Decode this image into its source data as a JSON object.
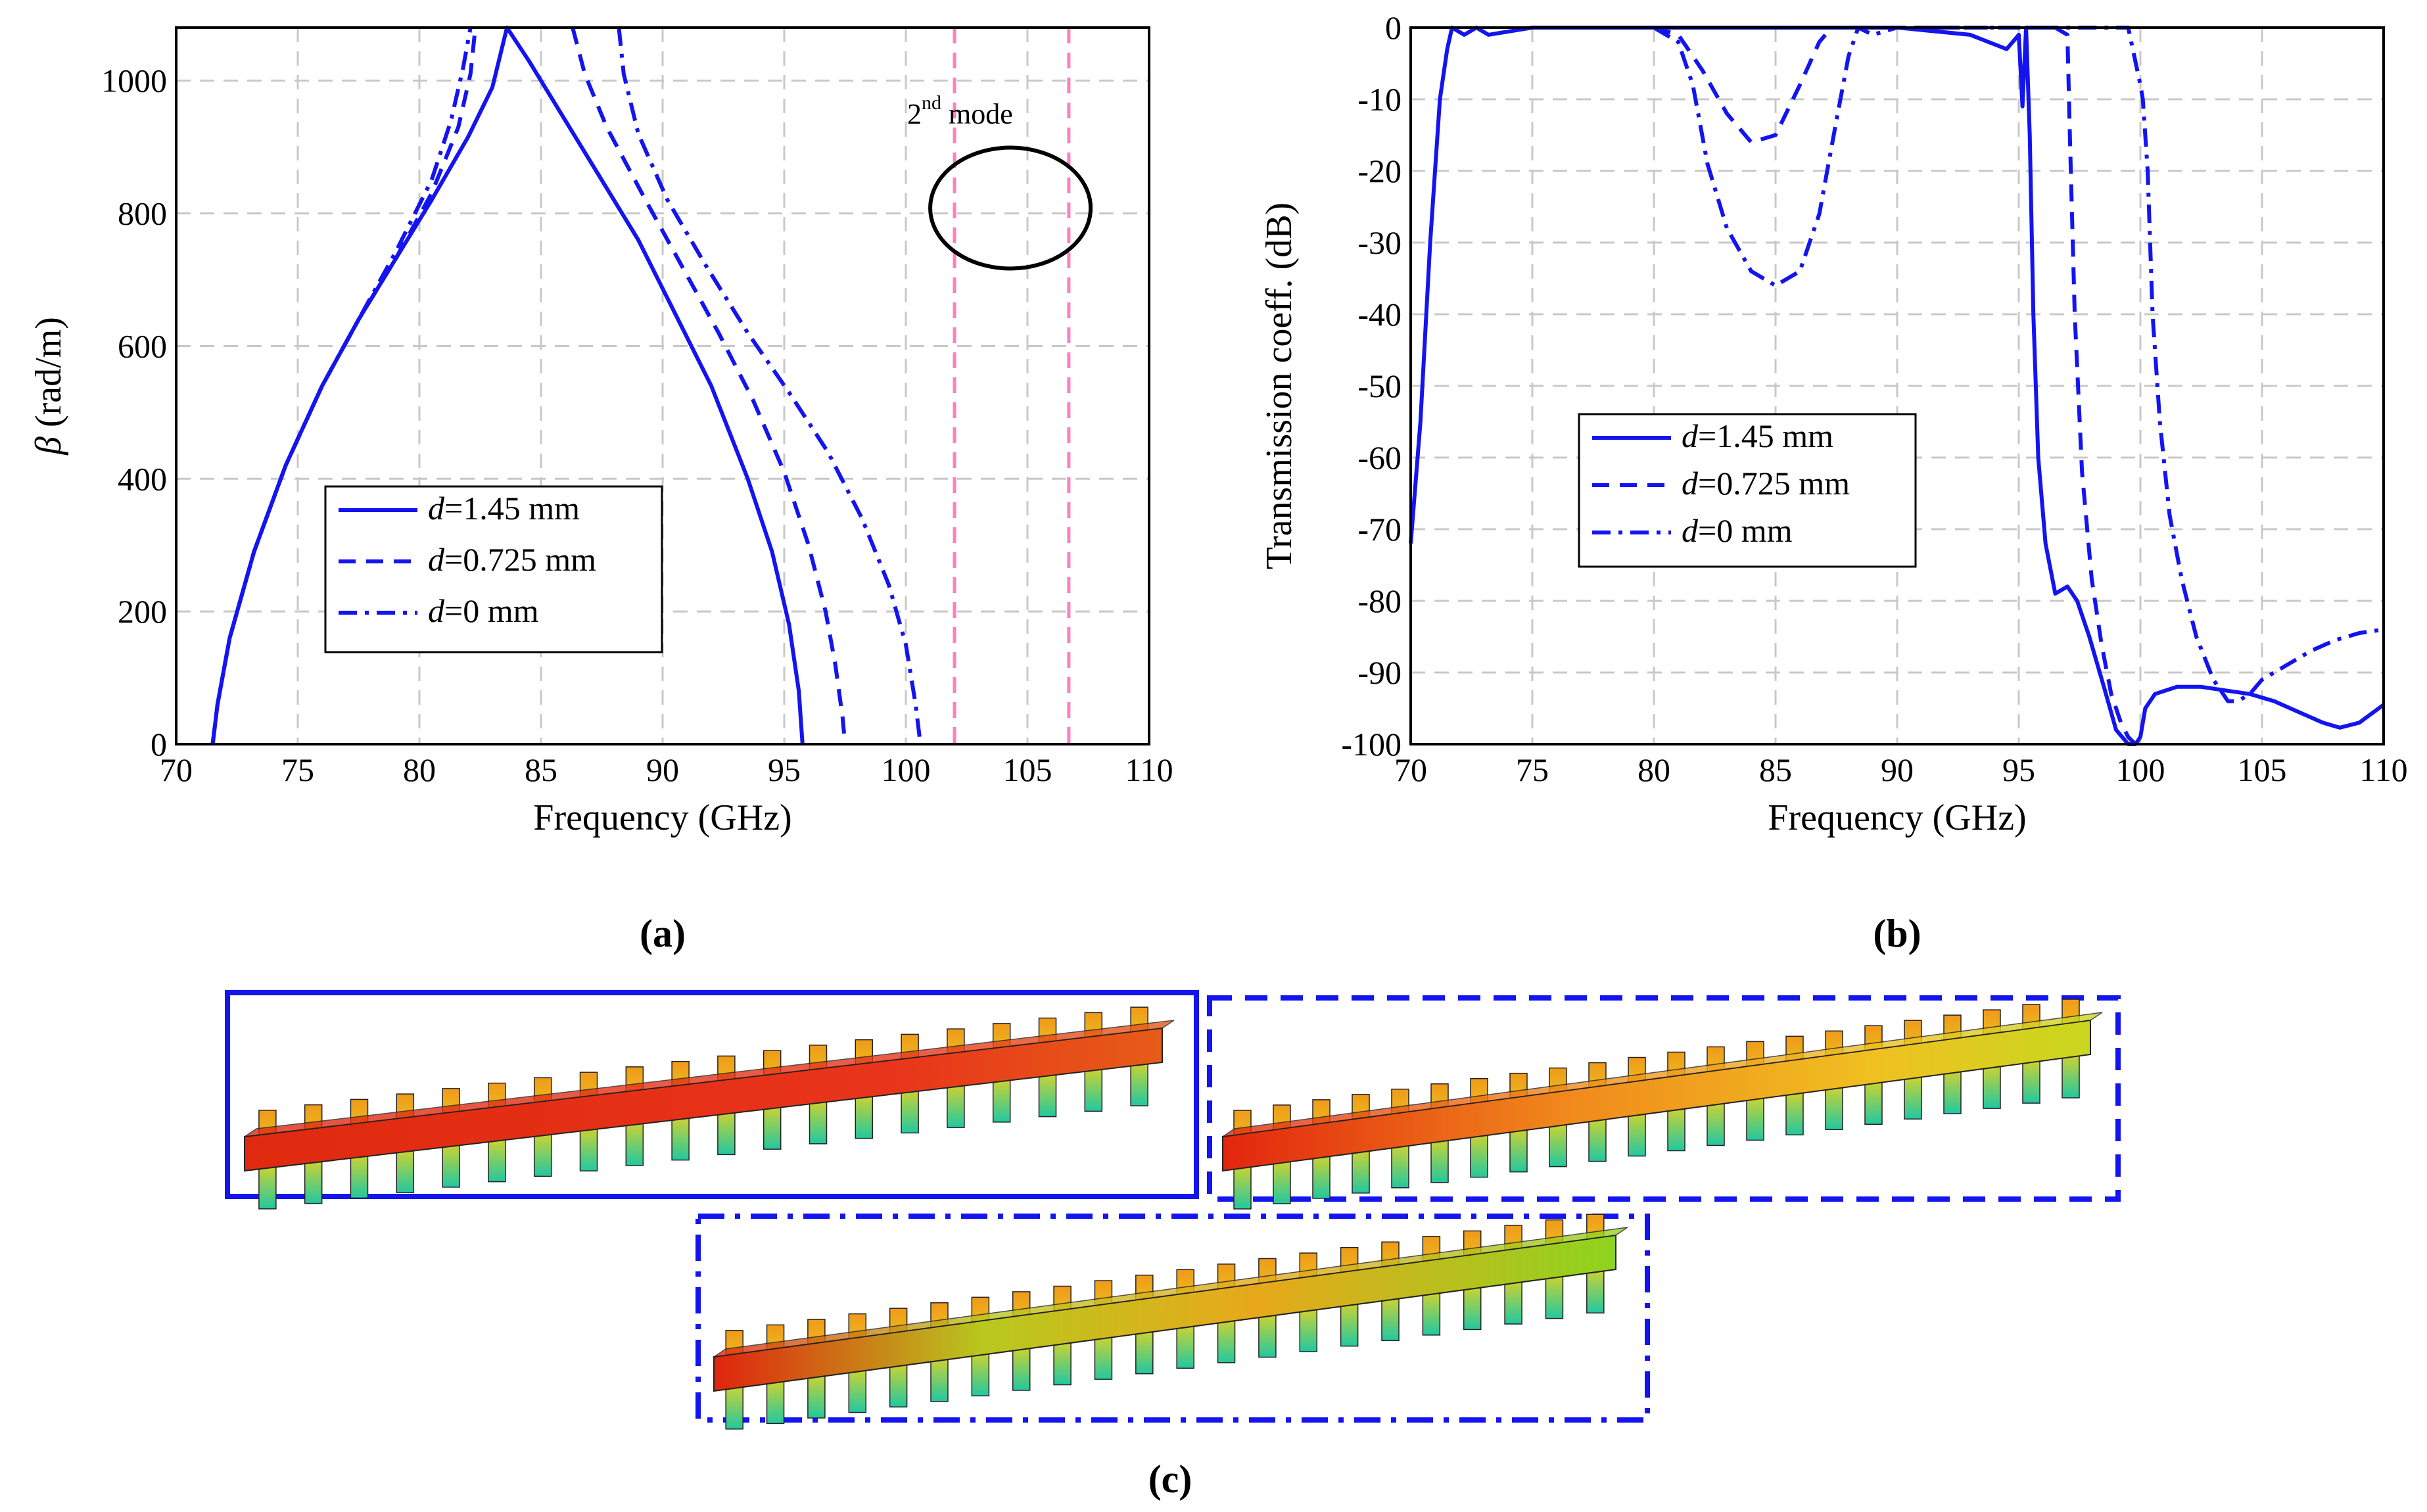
{
  "chart_data": [
    {
      "id": "a",
      "type": "line",
      "caption": "(a)",
      "xlabel": "Frequency (GHz)",
      "ylabel_symbol": "β",
      "ylabel": " (rad/m)",
      "xlim": [
        70,
        110
      ],
      "ylim": [
        0,
        1080
      ],
      "xticks": [
        70,
        75,
        80,
        85,
        90,
        95,
        100,
        105,
        110
      ],
      "yticks": [
        0,
        200,
        400,
        600,
        800,
        1000
      ],
      "grid": true,
      "legend_location": "lower-center",
      "legend": [
        {
          "var": "d",
          "text": "=1.45 mm",
          "style": "solid"
        },
        {
          "var": "d",
          "text": "=0.725 mm",
          "style": "dash"
        },
        {
          "var": "d",
          "text": "=0 mm",
          "style": "dashdot"
        }
      ],
      "annotation": {
        "text": "2",
        "superscript": "nd",
        "suffix": " mode"
      },
      "vlines": [
        102,
        106.7
      ],
      "vline_color": "#ff7fbf",
      "ellipse_center": [
        104.3,
        808
      ],
      "series": [
        {
          "name": "d=1.45 mm",
          "style": "solid",
          "x": [
            71.5,
            71.7,
            72.2,
            73.2,
            74.5,
            76,
            77.5,
            79,
            80.5,
            82,
            83,
            83.6,
            84.5,
            86,
            87.5,
            89,
            90.5,
            92,
            93.5,
            94.5,
            95.2,
            95.6,
            95.75
          ],
          "y": [
            0,
            60,
            160,
            290,
            420,
            540,
            640,
            730,
            820,
            915,
            990,
            1080,
            1030,
            940,
            850,
            760,
            650,
            540,
            400,
            290,
            180,
            80,
            0
          ]
        },
        {
          "name": "d=0.725 mm",
          "style": "dash",
          "x": [
            71.5,
            71.7,
            72.2,
            73.2,
            74.5,
            76,
            77.5,
            79,
            80.5,
            81.6,
            82.1,
            82.3
          ],
          "y": [
            0,
            60,
            160,
            290,
            420,
            540,
            640,
            730,
            830,
            930,
            1010,
            1080
          ]
        },
        {
          "name": "d=0.725 mm",
          "style": "dash",
          "x": [
            86.3,
            86.8,
            87.7,
            89.3,
            90.8,
            92.3,
            93.7,
            95,
            96,
            96.7,
            97.1,
            97.4,
            97.5
          ],
          "y": [
            1080,
            1010,
            930,
            820,
            720,
            620,
            520,
            410,
            300,
            200,
            120,
            40,
            0
          ]
        },
        {
          "name": "d=0 mm",
          "style": "dashdot",
          "x": [
            71.5,
            71.7,
            72.2,
            73.2,
            74.5,
            76,
            77.5,
            79,
            80.5,
            81.3,
            81.8,
            82.1
          ],
          "y": [
            0,
            60,
            160,
            290,
            420,
            540,
            640,
            740,
            850,
            940,
            1020,
            1080
          ]
        },
        {
          "name": "d=0 mm",
          "style": "dashdot",
          "x": [
            88.2,
            88.4,
            89,
            90.2,
            91.8,
            93.5,
            95.2,
            96.8,
            98.2,
            99.3,
            100,
            100.4,
            100.6
          ],
          "y": [
            1080,
            1010,
            920,
            820,
            720,
            620,
            530,
            440,
            340,
            240,
            150,
            60,
            0
          ]
        }
      ]
    },
    {
      "id": "b",
      "type": "line",
      "caption": "(b)",
      "xlabel": "Frequency (GHz)",
      "ylabel": "Transmission coeff. (dB)",
      "xlim": [
        70,
        110
      ],
      "ylim": [
        -100,
        0
      ],
      "xticks": [
        70,
        75,
        80,
        85,
        90,
        95,
        100,
        105,
        110
      ],
      "yticks": [
        0,
        -10,
        -20,
        -30,
        -40,
        -50,
        -60,
        -70,
        -80,
        -90,
        -100
      ],
      "grid": true,
      "legend_location": "center-left",
      "legend": [
        {
          "var": "d",
          "text": "=1.45 mm",
          "style": "solid"
        },
        {
          "var": "d",
          "text": "=0.725 mm",
          "style": "dash"
        },
        {
          "var": "d",
          "text": "=0 mm",
          "style": "dashdot"
        }
      ],
      "series": [
        {
          "name": "d=1.45 mm",
          "style": "solid",
          "x": [
            70,
            70.4,
            70.8,
            71.2,
            71.5,
            71.7,
            72.2,
            72.7,
            73.2,
            75,
            80,
            85,
            90,
            93,
            94.5,
            95,
            95.15,
            95.3,
            95.45,
            95.6,
            95.8,
            96.1,
            96.5,
            97,
            97.4,
            97.9,
            98.5,
            99,
            99.5,
            99.8,
            100,
            100.2,
            100.6,
            101.5,
            102.5,
            103.5,
            104.5,
            105.5,
            106.5,
            107.5,
            108.2,
            109,
            110
          ],
          "y": [
            -72,
            -55,
            -30,
            -10,
            -3,
            0,
            -1,
            0,
            -1,
            0,
            0,
            0,
            0,
            -1,
            -3,
            -1,
            -11,
            0,
            -15,
            -40,
            -60,
            -72,
            -79,
            -78,
            -80,
            -85,
            -92,
            -98,
            -100,
            -100,
            -99,
            -95,
            -93,
            -92,
            -92,
            -92.5,
            -93,
            -94,
            -95.5,
            -97,
            -97.7,
            -97,
            -94.5
          ]
        },
        {
          "name": "d=0.725 mm",
          "style": "dash",
          "x": [
            80,
            81,
            82,
            83,
            84,
            85,
            86,
            86.8,
            87.3,
            90,
            92,
            95,
            96.5,
            97,
            97.1,
            97.3,
            97.6,
            98,
            98.4,
            98.8,
            99.2,
            99.5,
            99.8
          ],
          "y": [
            0,
            -1,
            -6,
            -12,
            -16,
            -15,
            -8,
            -2,
            0,
            0,
            0,
            0,
            0,
            -1,
            -15,
            -40,
            -62,
            -77,
            -86,
            -93,
            -97,
            -99,
            -100
          ]
        },
        {
          "name": "d=0 mm",
          "style": "dashdot",
          "x": [
            80,
            80.5,
            81,
            81.6,
            82.2,
            83,
            84,
            85,
            86,
            86.8,
            87.5,
            88,
            88.4,
            89,
            90,
            92,
            95,
            98,
            99.5,
            100,
            100.1,
            100.3,
            100.5,
            100.8,
            101.2,
            101.7,
            102.3,
            103,
            103.6,
            104,
            104.5,
            105,
            106,
            107,
            108,
            109,
            110
          ],
          "y": [
            0,
            -1,
            -2,
            -8,
            -19,
            -28,
            -34,
            -36,
            -34,
            -26,
            -13,
            -4,
            0,
            -1,
            0,
            0,
            0,
            0,
            0,
            -8,
            -10,
            -20,
            -40,
            -55,
            -68,
            -77,
            -85,
            -91,
            -94,
            -94,
            -93,
            -91,
            -89,
            -87,
            -85.5,
            -84.5,
            -84
          ]
        }
      ]
    }
  ],
  "panel_c": {
    "caption": "(c)",
    "insets": [
      {
        "name": "d=1.45 mm field",
        "border": "solid"
      },
      {
        "name": "d=0.725 mm field",
        "border": "dash"
      },
      {
        "name": "d=0 mm field",
        "border": "dashdot"
      }
    ]
  },
  "colors": {
    "series": "#1414f0",
    "grid": "#c8c8c8",
    "marker_line": "#ff7fbf"
  }
}
